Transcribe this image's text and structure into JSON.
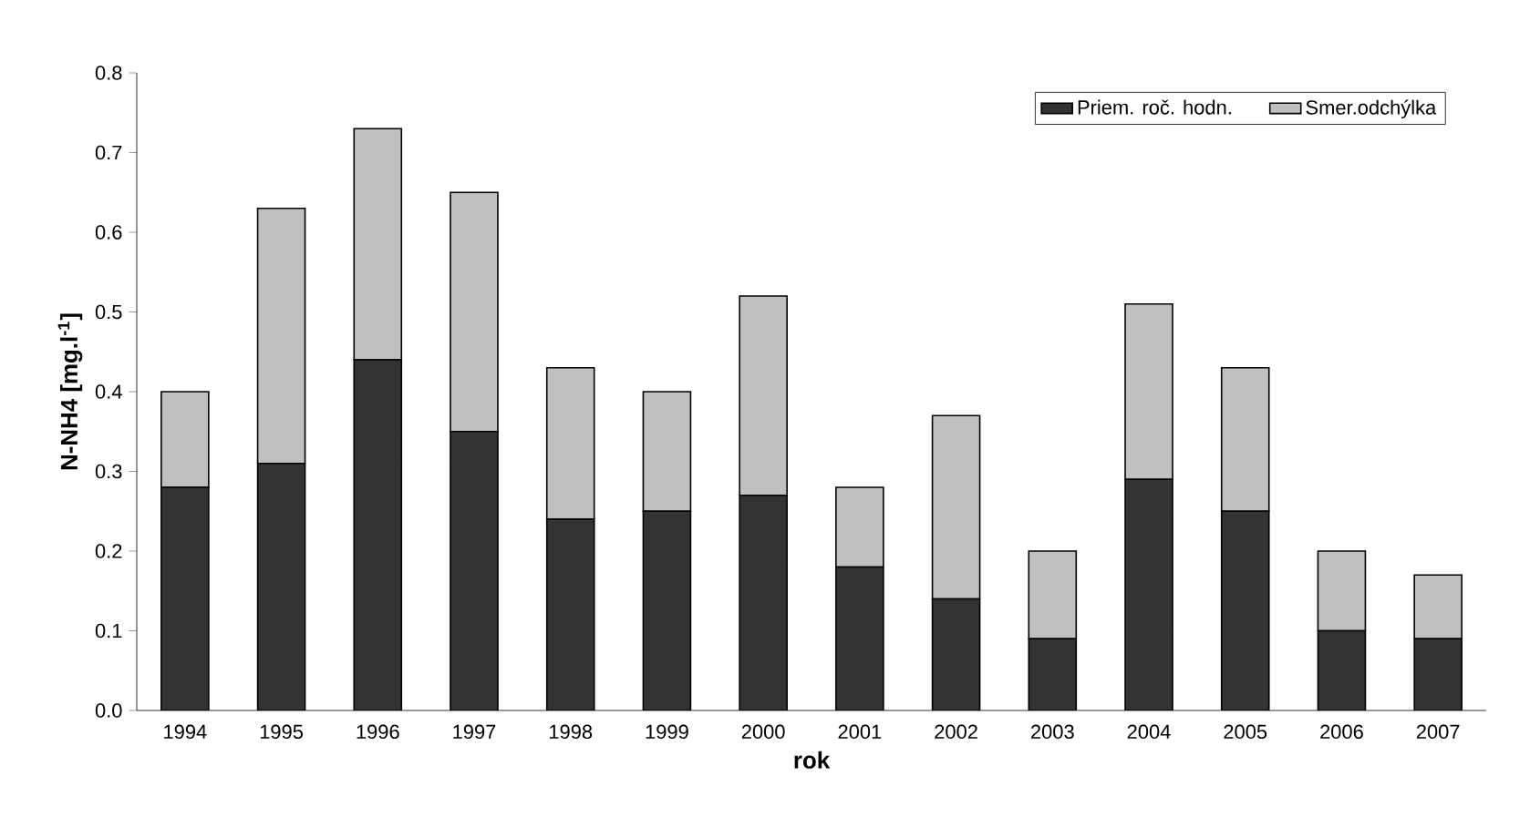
{
  "chart_data": {
    "type": "bar",
    "stacked": true,
    "xlabel": "rok",
    "ylabel": "N-NH4 [mg.l$^{-1}$]",
    "categories": [
      "1994",
      "1995",
      "1996",
      "1997",
      "1998",
      "1999",
      "2000",
      "2001",
      "2002",
      "2003",
      "2004",
      "2005",
      "2006",
      "2007"
    ],
    "series": [
      {
        "name": "Priem. roč. hodn.",
        "color": "#333333",
        "values": [
          0.28,
          0.31,
          0.44,
          0.35,
          0.24,
          0.25,
          0.27,
          0.18,
          0.14,
          0.09,
          0.29,
          0.25,
          0.1,
          0.09
        ]
      },
      {
        "name": "Smer.odchýlka",
        "color": "#c0c0c0",
        "values": [
          0.12,
          0.32,
          0.29,
          0.3,
          0.19,
          0.15,
          0.25,
          0.1,
          0.23,
          0.11,
          0.22,
          0.18,
          0.1,
          0.08
        ]
      }
    ],
    "ylim": [
      0,
      0.8
    ],
    "yticks": [
      {
        "value": 0,
        "label": "0.0"
      },
      {
        "value": 0.1,
        "label": "0.1"
      },
      {
        "value": 0.2,
        "label": "0.2"
      },
      {
        "value": 0.3,
        "label": "0.3"
      },
      {
        "value": 0.4,
        "label": "0.4"
      },
      {
        "value": 0.5,
        "label": "0.5"
      },
      {
        "value": 0.6,
        "label": "0.6"
      },
      {
        "value": 0.7,
        "label": "0.7"
      },
      {
        "value": 0.8,
        "label": "0.8"
      }
    ],
    "legend": "top right",
    "grid": false
  }
}
